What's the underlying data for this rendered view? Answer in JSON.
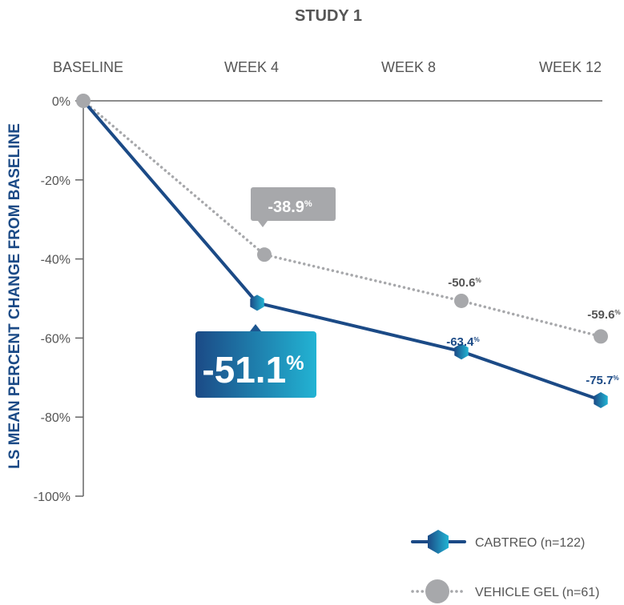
{
  "chart_data": {
    "type": "line",
    "title": "STUDY 1",
    "ylabel": "LS MEAN PERCENT CHANGE FROM BASELINE",
    "xlabel": "",
    "categories": [
      "BASELINE",
      "WEEK 4",
      "WEEK 8",
      "WEEK 12"
    ],
    "ylim": [
      -100,
      0
    ],
    "yticks": [
      0,
      -20,
      -40,
      -60,
      -80,
      -100
    ],
    "ytick_labels": [
      "0%",
      "-20%",
      "-40%",
      "-60%",
      "-80%",
      "-100%"
    ],
    "grid": false,
    "legend_position": "bottom-right",
    "series": [
      {
        "name": "CABTREO (n=122)",
        "color": "#1b4a86",
        "values": [
          0,
          -51.1,
          -63.4,
          -75.7
        ],
        "labels": [
          "",
          "-51.1",
          "-63.4",
          "-75.7"
        ],
        "style": "solid"
      },
      {
        "name": "VEHICLE GEL (n=61)",
        "color": "#a7a8ab",
        "values": [
          0,
          -38.9,
          -50.6,
          -59.6
        ],
        "labels": [
          "",
          "-38.9",
          "-50.6",
          "-59.6"
        ],
        "style": "dotted"
      }
    ],
    "percent_sign": "%"
  }
}
